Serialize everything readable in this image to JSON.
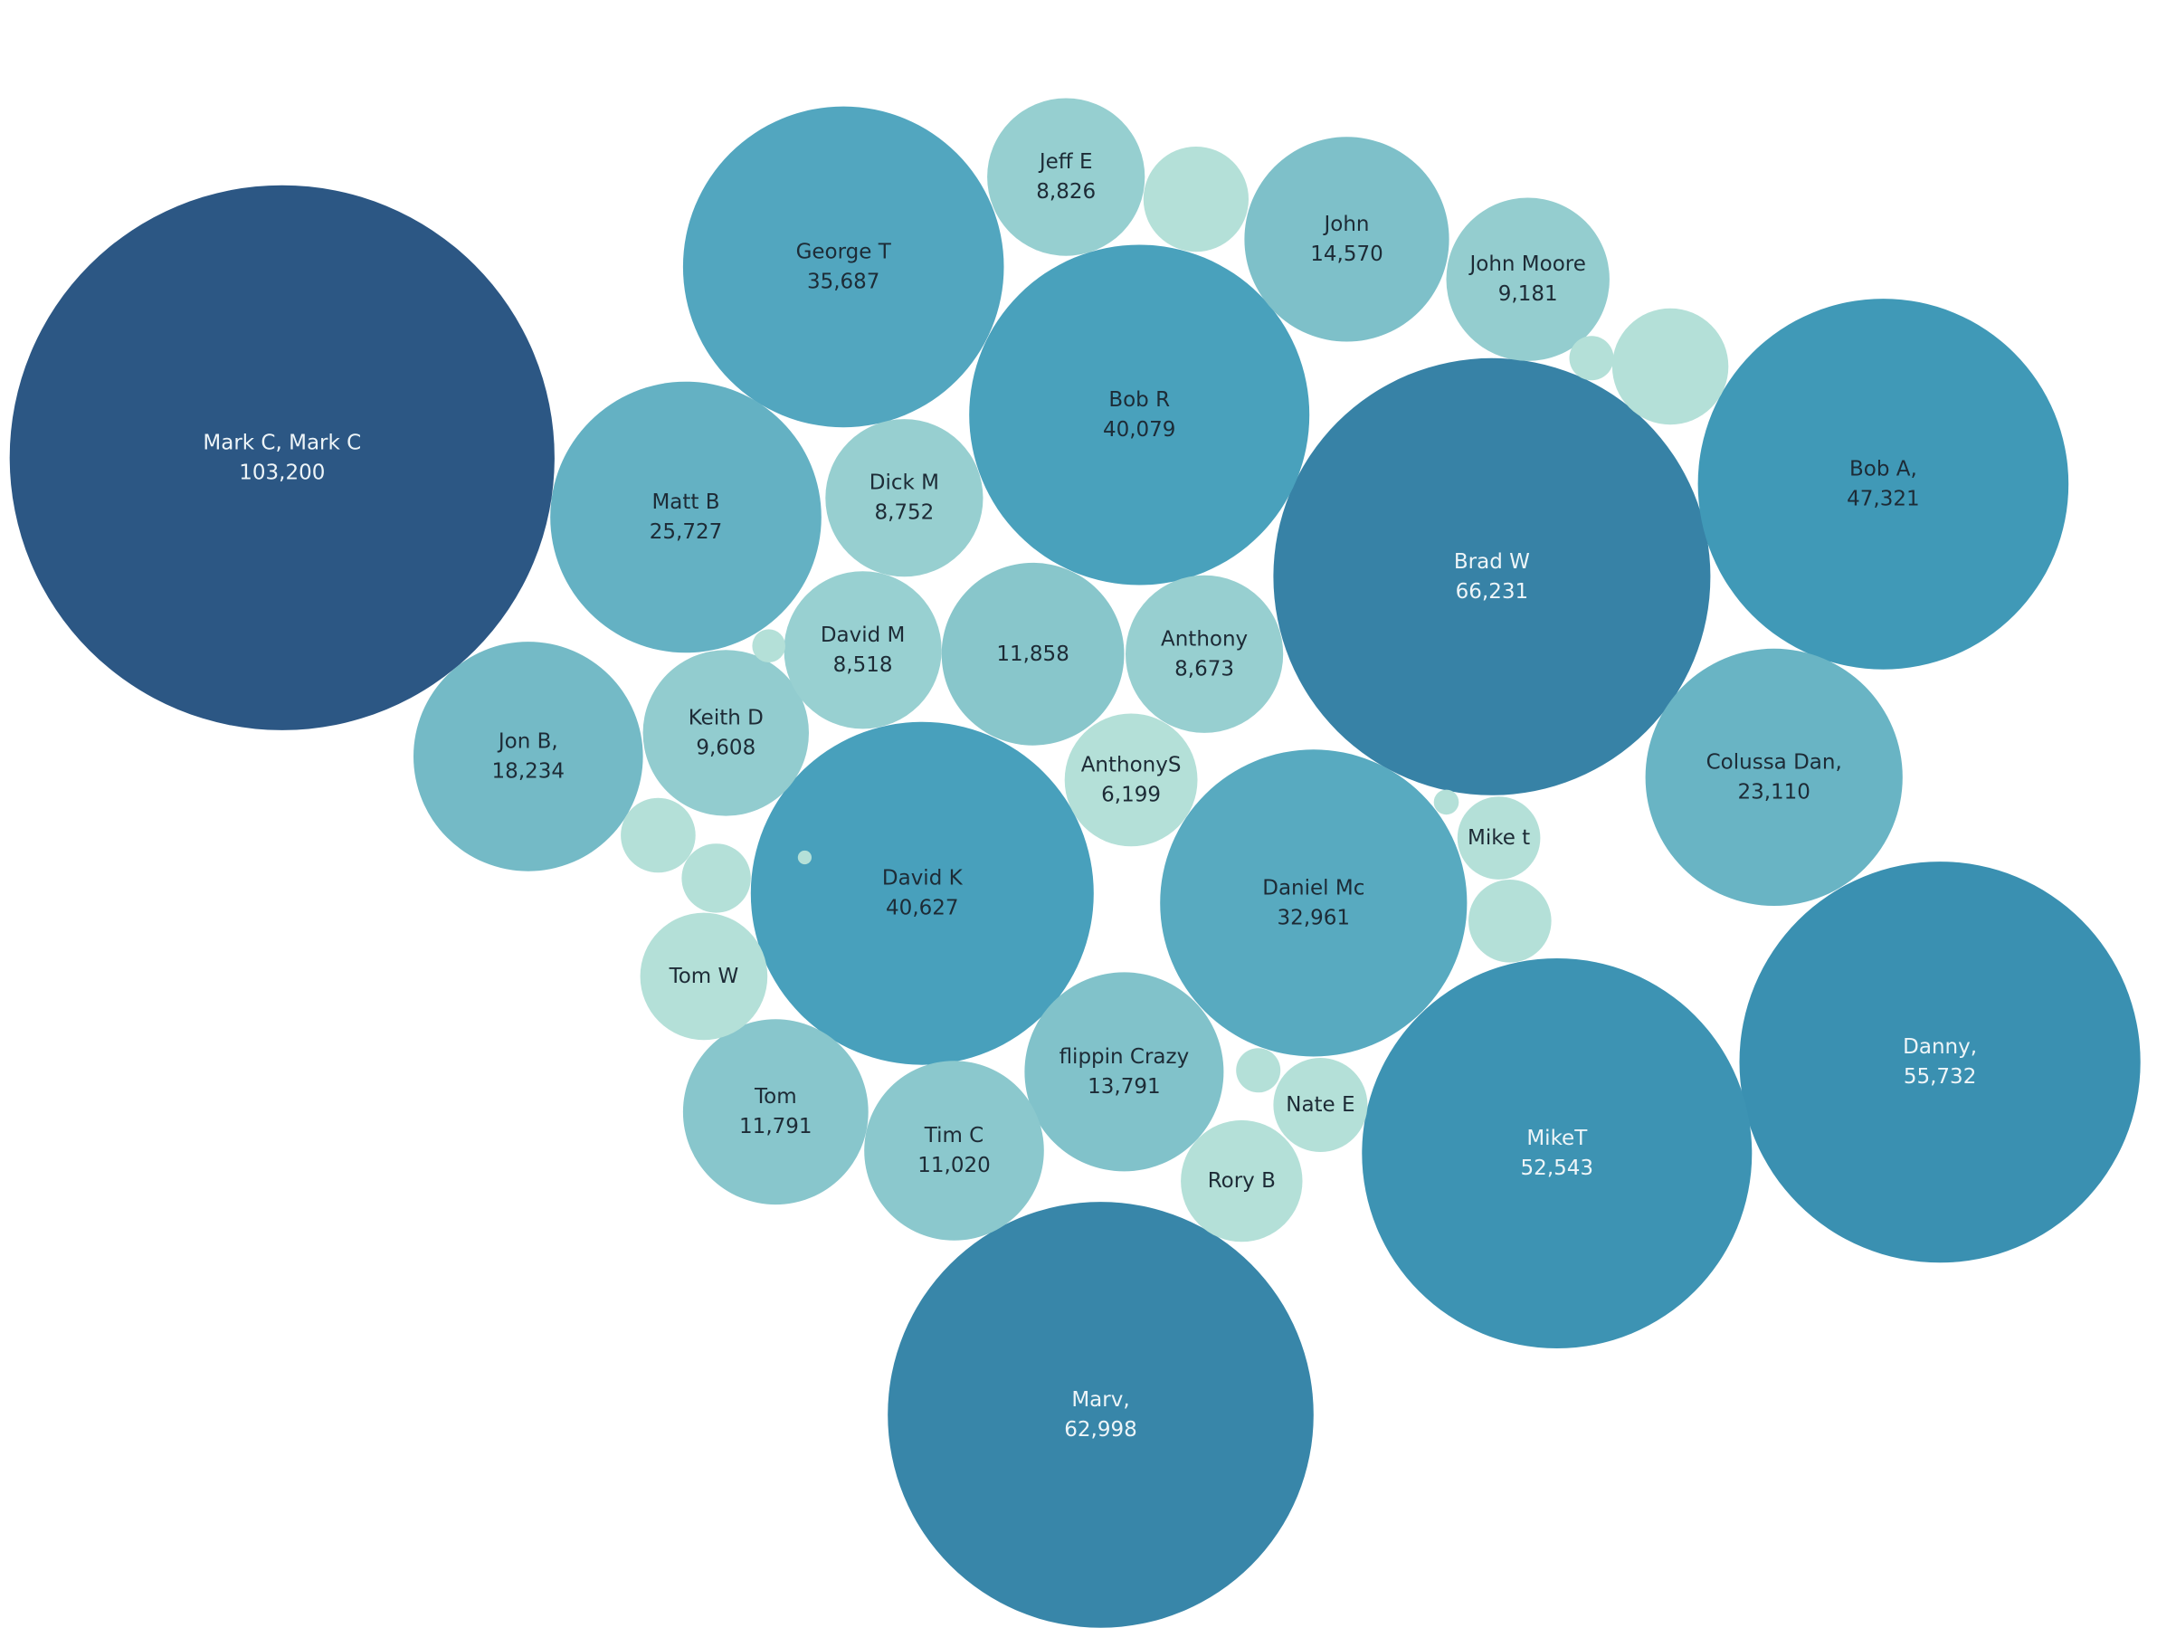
{
  "chart_data": {
    "type": "bubble",
    "title": "",
    "color_scale": {
      "low": "#b4e0d8",
      "high": "#2c5784"
    },
    "bubbles": [
      {
        "name": "Mark C, Mark C",
        "value": 103200,
        "value_label": "103,200"
      },
      {
        "name": "Brad W",
        "value": 66231,
        "value_label": "66,231"
      },
      {
        "name": "Marv,",
        "value": 62998,
        "value_label": "62,998"
      },
      {
        "name": "Danny,",
        "value": 55732,
        "value_label": "55,732"
      },
      {
        "name": "MikeT",
        "value": 52543,
        "value_label": "52,543"
      },
      {
        "name": "Bob A,",
        "value": 47321,
        "value_label": "47,321"
      },
      {
        "name": "David K",
        "value": 40627,
        "value_label": "40,627"
      },
      {
        "name": "Bob R",
        "value": 40079,
        "value_label": "40,079"
      },
      {
        "name": "George T",
        "value": 35687,
        "value_label": "35,687"
      },
      {
        "name": "Daniel Mc",
        "value": 32961,
        "value_label": "32,961"
      },
      {
        "name": "Matt B",
        "value": 25727,
        "value_label": "25,727"
      },
      {
        "name": "Colussa Dan,",
        "value": 23110,
        "value_label": "23,110"
      },
      {
        "name": "Jon B,",
        "value": 18234,
        "value_label": "18,234"
      },
      {
        "name": "John",
        "value": 14570,
        "value_label": "14,570"
      },
      {
        "name": "flippin Crazy",
        "value": 13791,
        "value_label": "13,791"
      },
      {
        "name": "",
        "value": 11858,
        "value_label": "11,858"
      },
      {
        "name": "Tom",
        "value": 11791,
        "value_label": "11,791"
      },
      {
        "name": "Tim C",
        "value": 11020,
        "value_label": "11,020"
      },
      {
        "name": "Keith D",
        "value": 9608,
        "value_label": "9,608"
      },
      {
        "name": "John Moore",
        "value": 9181,
        "value_label": "9,181"
      },
      {
        "name": "Jeff E",
        "value": 8826,
        "value_label": "8,826"
      },
      {
        "name": "Dick M",
        "value": 8752,
        "value_label": "8,752"
      },
      {
        "name": "Anthony",
        "value": 8673,
        "value_label": "8,673"
      },
      {
        "name": "David M",
        "value": 8518,
        "value_label": "8,518"
      },
      {
        "name": "AnthonyS",
        "value": 6199,
        "value_label": "6,199"
      },
      {
        "name": "Tom W",
        "value": null,
        "value_label": ""
      },
      {
        "name": "Rory B",
        "value": null,
        "value_label": ""
      },
      {
        "name": "Nate E",
        "value": null,
        "value_label": ""
      },
      {
        "name": "Mike t",
        "value": null,
        "value_label": ""
      },
      {
        "name": "",
        "value": null,
        "value_label": ""
      },
      {
        "name": "",
        "value": null,
        "value_label": ""
      },
      {
        "name": "",
        "value": null,
        "value_label": ""
      },
      {
        "name": "",
        "value": null,
        "value_label": ""
      },
      {
        "name": "",
        "value": null,
        "value_label": ""
      },
      {
        "name": "",
        "value": null,
        "value_label": ""
      },
      {
        "name": "",
        "value": null,
        "value_label": ""
      },
      {
        "name": "",
        "value": null,
        "value_label": ""
      },
      {
        "name": "",
        "value": null,
        "value_label": ""
      },
      {
        "name": "",
        "value": null,
        "value_label": ""
      }
    ]
  }
}
